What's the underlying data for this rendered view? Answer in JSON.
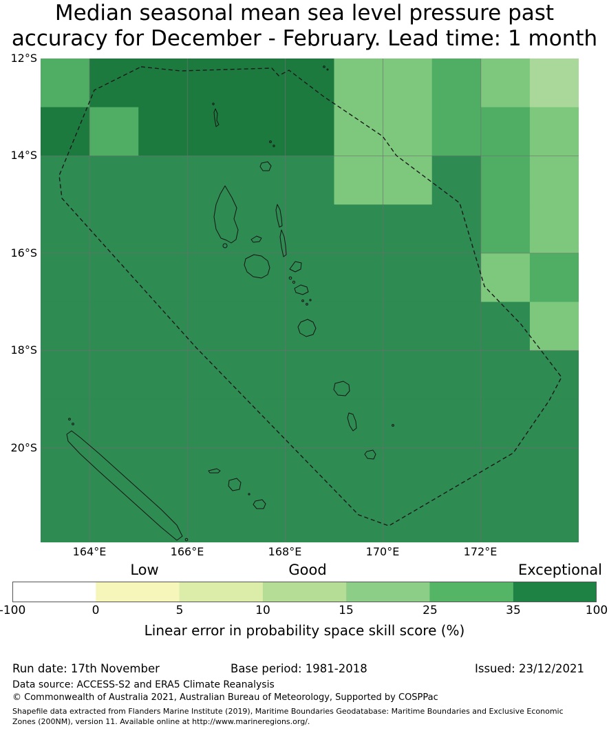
{
  "title": {
    "line1": "Median seasonal mean sea level pressure past",
    "line2": "accuracy for December - February. Lead time: 1 month"
  },
  "map": {
    "x_ticks": [
      "164°E",
      "166°E",
      "168°E",
      "170°E",
      "172°E"
    ],
    "y_ticks": [
      "12°S",
      "14°S",
      "16°S",
      "18°S",
      "20°S"
    ],
    "grid_lons": [
      164,
      166,
      168,
      170,
      172
    ],
    "grid_lats": [
      14,
      16,
      18,
      20
    ],
    "lon_min": 163.0,
    "lon_max": 174.0,
    "lat_min": 12.0,
    "lat_max": 21.94,
    "palette": {
      "d": "#1d7a3f",
      "b": "#2e8b52",
      "m": "#4fae63",
      "l": "#7ec87e",
      "t": "#a9d89a"
    },
    "grid": {
      "cols": 11,
      "rows": 10,
      "cell_deg": 1,
      "codes": [
        "mdddddllmlt",
        "dmddddllmml",
        "bbbbbbllbml",
        "bbbbbbbbbml",
        "bbbbbbbbblm",
        "bbbbbbbbbbl",
        "bbbbbbbbbbb",
        "bbbbbbbbbbb",
        "bbbbbbbbbbb",
        "bbbbbbbbbbb"
      ]
    }
  },
  "legend": {
    "labels": [
      "Low",
      "Good",
      "Exceptional"
    ],
    "ticks": [
      "-100",
      "0",
      "5",
      "10",
      "15",
      "25",
      "35",
      "100"
    ],
    "colors": [
      "#ffffff",
      "#f6f6ba",
      "#dcedaa",
      "#b5dd96",
      "#8ccd87",
      "#55b567",
      "#1e8245"
    ],
    "caption": "Linear error in probability space skill score (%)"
  },
  "footer": {
    "run_date": "Run date: 17th November",
    "base_period": "Base period: 1981-2018",
    "issued": "Issued: 23/12/2021",
    "data_source": "Data source: ACCESS-S2 and ERA5 Climate Reanalysis",
    "copyright": "© Commonwealth of Australia 2021, Australian Bureau of Meteorology, Supported by COSPPac",
    "shapefile_note": "Shapefile data extracted from Flanders Marine Institute (2019), Maritime Boundaries Geodatabase: Maritime Boundaries and Exclusive Economic Zones (200NM), version 11. Available online at http://www.marineregions.org/."
  }
}
